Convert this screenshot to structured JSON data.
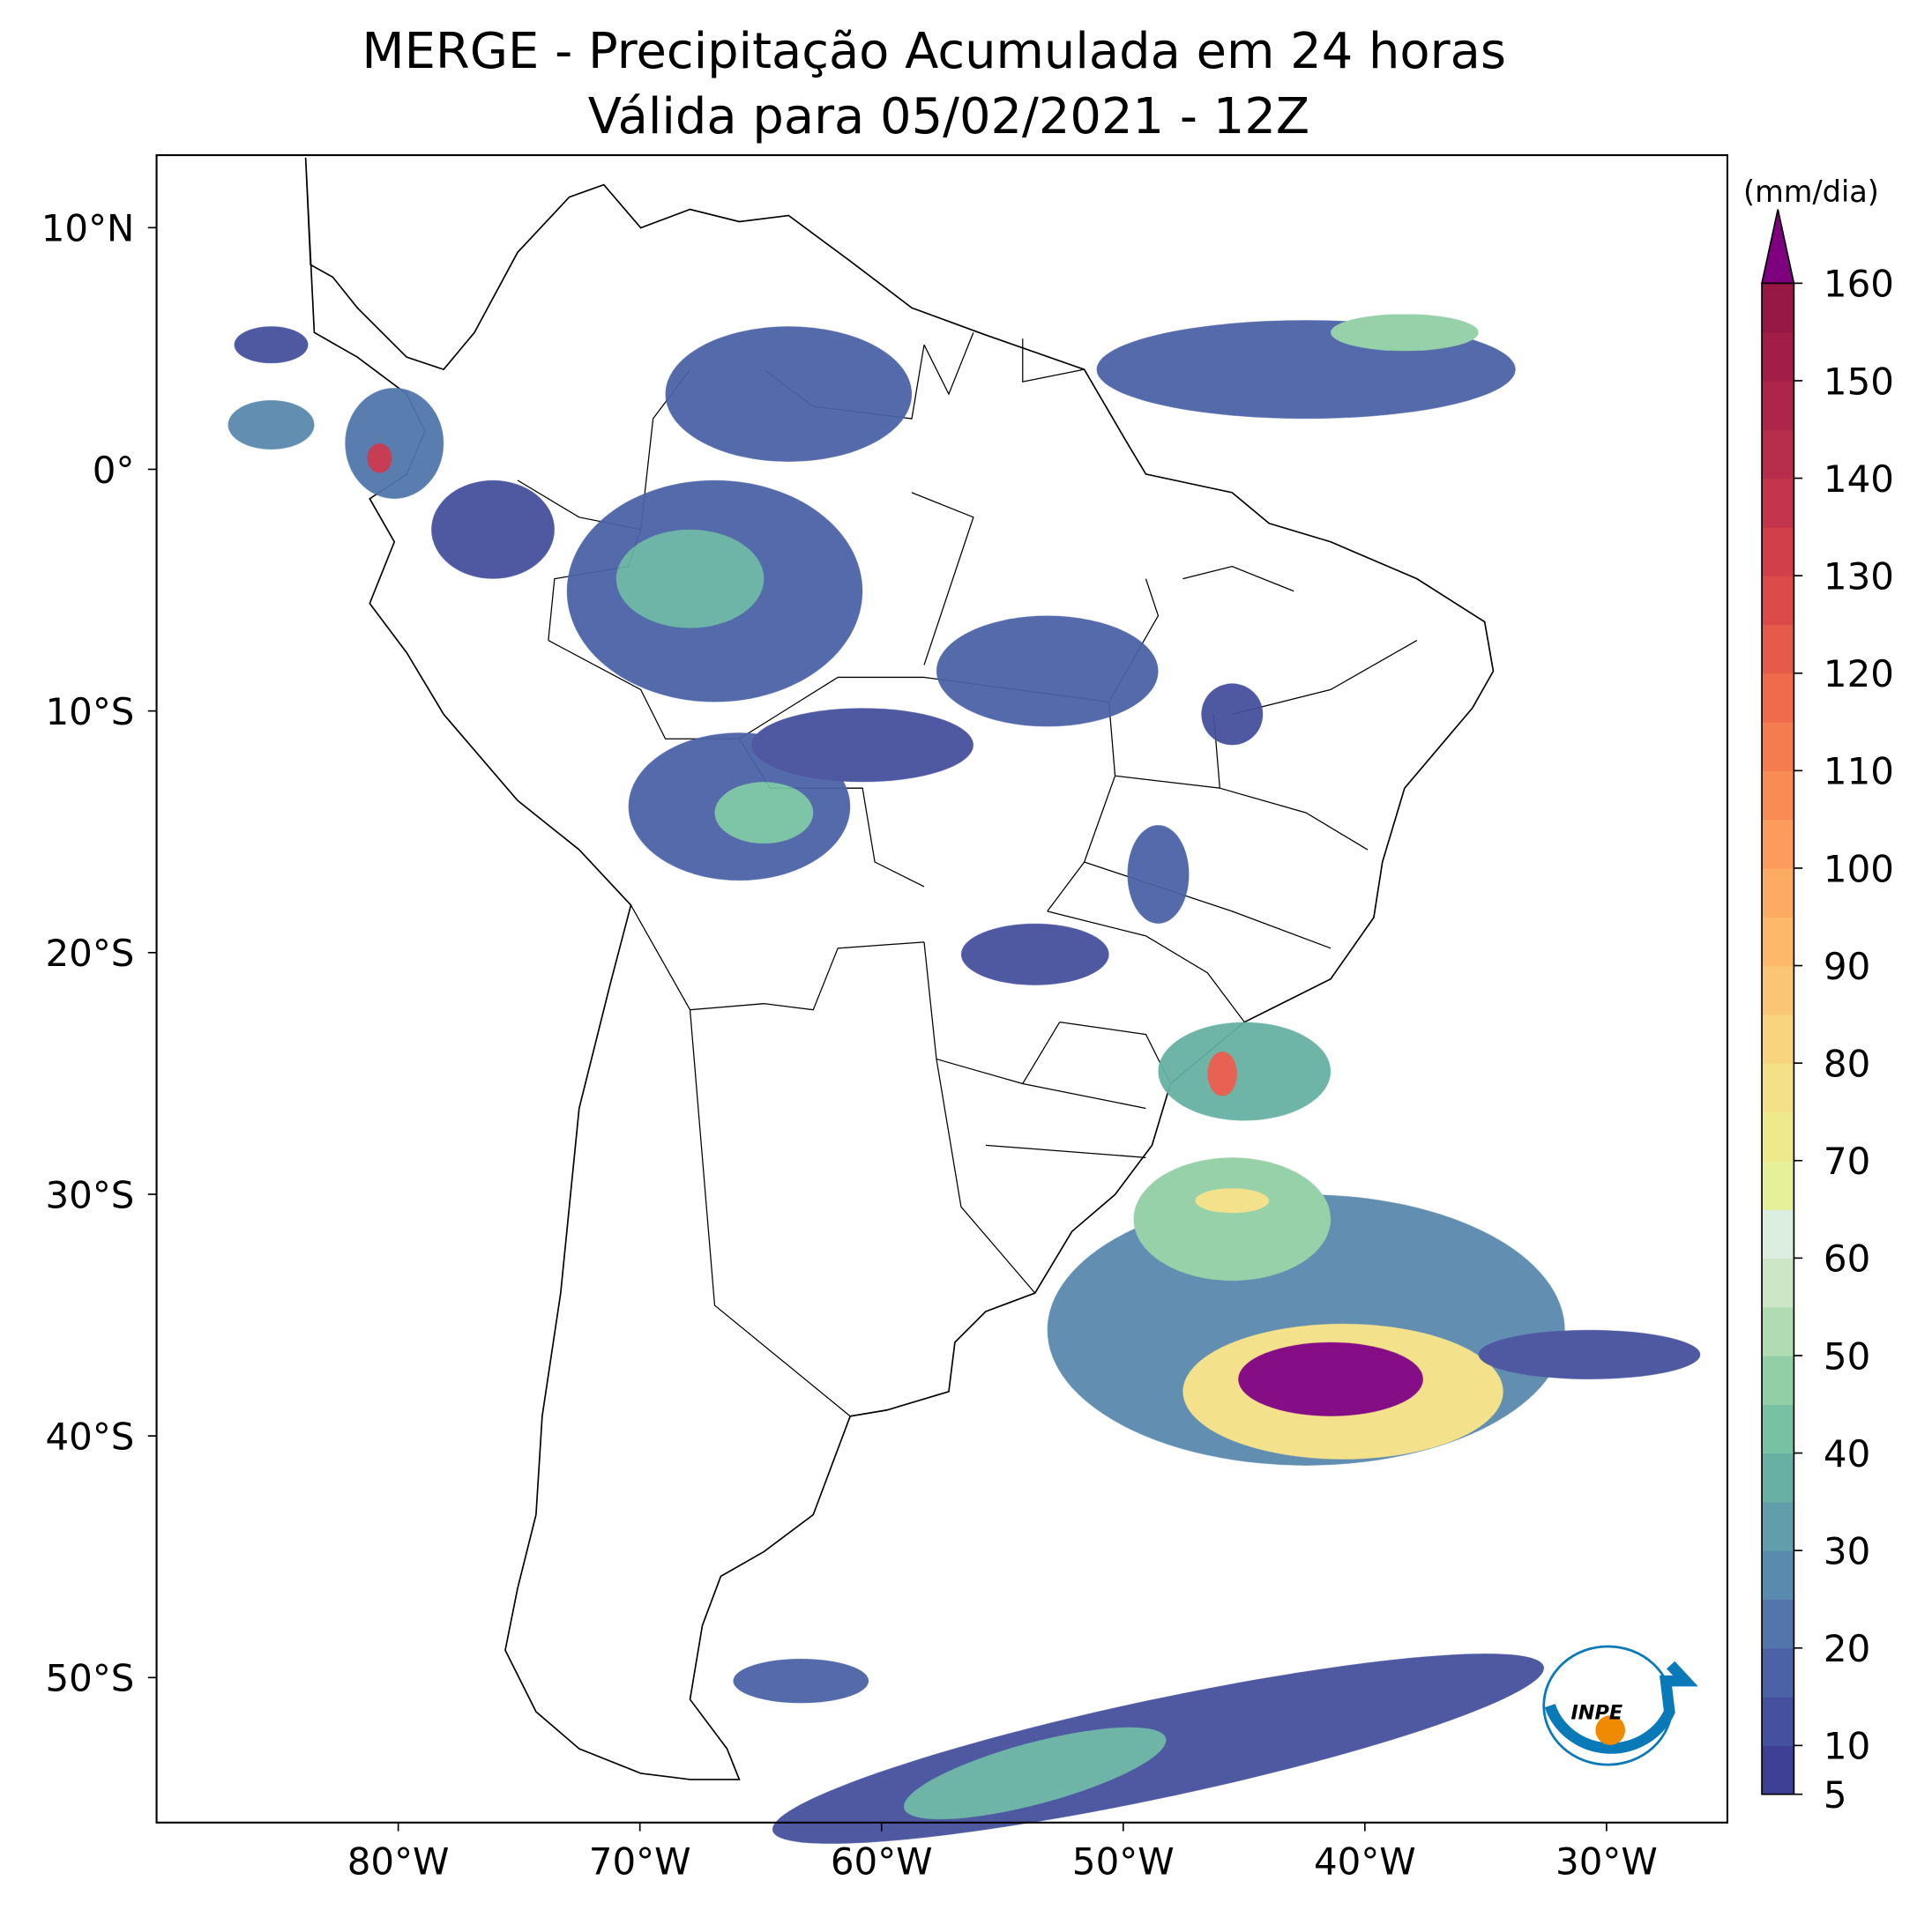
{
  "title": [
    "MERGE - Precipitação Acumulada em 24 horas",
    "Válida para 05/02/2021 - 12Z"
  ],
  "map": {
    "xlim": [
      -90,
      -25
    ],
    "ylim": [
      -56,
      13
    ],
    "xticks": [
      {
        "value": -80,
        "label": "80°W"
      },
      {
        "value": -70,
        "label": "70°W"
      },
      {
        "value": -60,
        "label": "60°W"
      },
      {
        "value": -50,
        "label": "50°W"
      },
      {
        "value": -40,
        "label": "40°W"
      },
      {
        "value": -30,
        "label": "30°W"
      }
    ],
    "yticks": [
      {
        "value": 10,
        "label": "10°N"
      },
      {
        "value": 0,
        "label": "0°"
      },
      {
        "value": -10,
        "label": "10°S"
      },
      {
        "value": -20,
        "label": "20°S"
      },
      {
        "value": -30,
        "label": "30°S"
      },
      {
        "value": -40,
        "label": "40°S"
      },
      {
        "value": -50,
        "label": "50°S"
      }
    ]
  },
  "colorbar": {
    "label": "(mm/dia)",
    "range": [
      5,
      160
    ],
    "ticks": [
      5,
      10,
      20,
      30,
      40,
      50,
      60,
      70,
      80,
      90,
      100,
      110,
      120,
      130,
      140,
      150,
      160
    ],
    "colors": [
      "#3e4095",
      "#45519e",
      "#4b63a6",
      "#5276ac",
      "#5a8aad",
      "#5f9eaa",
      "#67b0a3",
      "#78c1a2",
      "#92cfa6",
      "#b1dbb1",
      "#cde6c6",
      "#dbeee0",
      "#e6f098",
      "#eeea8c",
      "#f4e086",
      "#f8d47c",
      "#fbc673",
      "#fdb86a",
      "#fdaa62",
      "#fc9b5c",
      "#f98c55",
      "#f57c4f",
      "#ef6b4b",
      "#e65a49",
      "#dc4b4a",
      "#d03f4a",
      "#c4344b",
      "#b82d4c",
      "#ad264a",
      "#a21e48",
      "#971844"
    ],
    "extend_color": "#7f007f"
  },
  "logo_text": "INPE"
}
